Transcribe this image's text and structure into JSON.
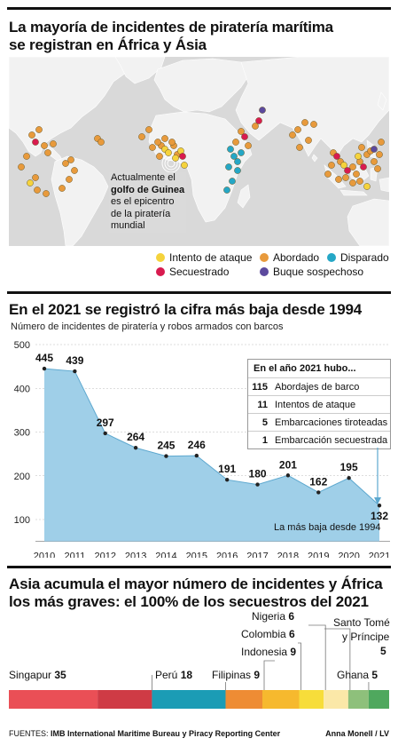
{
  "section1": {
    "title_line1": "La mayoría de incidentes de piratería marítima",
    "title_line2": "se registran en África y Ásia",
    "annotation": {
      "l1": "Actualmente el",
      "l2_bold": "golfo de Guinea",
      "l3": "es el epicentro",
      "l4": "de la piratería",
      "l5": "mundial"
    },
    "legend": [
      {
        "label": "Intento de ataque",
        "color": "#f5d33c"
      },
      {
        "label": "Abordado",
        "color": "#e89a3c"
      },
      {
        "label": "Disparado",
        "color": "#25a7c6"
      },
      {
        "label": "Secuestrado",
        "color": "#d81b4f"
      },
      {
        "label": "Buque sospechoso",
        "color": "#5c4a9e"
      }
    ]
  },
  "section2": {
    "title": "En el 2021 se registró la cifra más baja desde 1994",
    "subtitle": "Número de incidentes de piratería y robos armados con barcos",
    "callout": {
      "title": "En el año 2021 hubo...",
      "rows": [
        {
          "num": "115",
          "text": "Abordajes de barco"
        },
        {
          "num": "11",
          "text": "Intentos de ataque"
        },
        {
          "num": "5",
          "text": "Embarcaciones tiroteadas"
        },
        {
          "num": "1",
          "text": "Embarcación secuestrada"
        }
      ]
    },
    "low_note": "La más baja desde 1994"
  },
  "section3": {
    "title_line1": "Asia acumula el mayor número de incidentes y África",
    "title_line2": "los más graves: el 100% de los secuestros del 2021"
  },
  "footer": {
    "source_prefix": "FUENTES:",
    "source": "IMB International Maritime Bureau y Piracy Reporting Center",
    "credit": "Anna Monell / LV"
  },
  "chart_data": [
    {
      "type": "area",
      "x": [
        2010,
        2011,
        2012,
        2013,
        2014,
        2015,
        2016,
        2017,
        2018,
        2019,
        2020,
        2021
      ],
      "values": [
        445,
        439,
        297,
        264,
        245,
        246,
        191,
        180,
        201,
        162,
        195,
        132
      ],
      "ylim": [
        50,
        500
      ],
      "yticks": [
        100,
        200,
        300,
        400,
        500
      ],
      "grid": true,
      "color": "#9fcfe8"
    },
    {
      "type": "bar",
      "stacked": true,
      "categories": [
        "Singapur",
        "Perú",
        "Filipinas",
        "Indonesia",
        "Colombia",
        "Nigeria",
        "Santo Tomé y Príncipe",
        "Ghana"
      ],
      "values": [
        35,
        18,
        9,
        9,
        6,
        6,
        5,
        5
      ],
      "colors": [
        "#ea4f56",
        "#cf3b45",
        "#1b9cb5",
        "#ee8c34",
        "#f6b92e",
        "#f7dd3a",
        "#fbe8a8",
        "#8ec07b",
        "#4fa85e"
      ]
    }
  ]
}
